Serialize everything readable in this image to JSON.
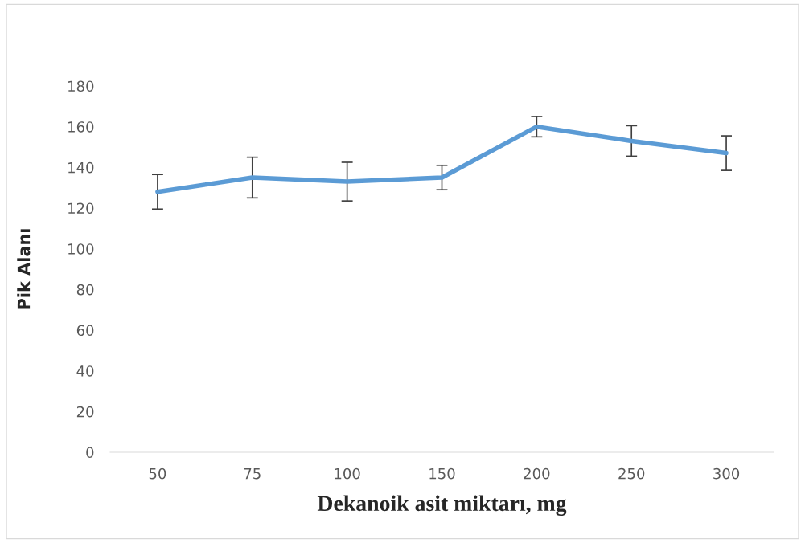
{
  "chart_data": {
    "type": "line",
    "xlabel": "Dekanoik asit miktarı, mg",
    "ylabel": "Pik Alanı",
    "categories": [
      "50",
      "75",
      "100",
      "150",
      "200",
      "250",
      "300"
    ],
    "series": [
      {
        "color": "#5b9bd5",
        "values": [
          128,
          135,
          133,
          135,
          160,
          153,
          147
        ],
        "errors": [
          8.5,
          10,
          9.5,
          6,
          5,
          7.5,
          8.5
        ]
      }
    ],
    "ylim": [
      0,
      180
    ],
    "yticks": [
      0,
      20,
      40,
      60,
      80,
      100,
      120,
      140,
      160,
      180
    ],
    "grid": false,
    "legend": false,
    "marker": "none",
    "line_style": "solid"
  }
}
